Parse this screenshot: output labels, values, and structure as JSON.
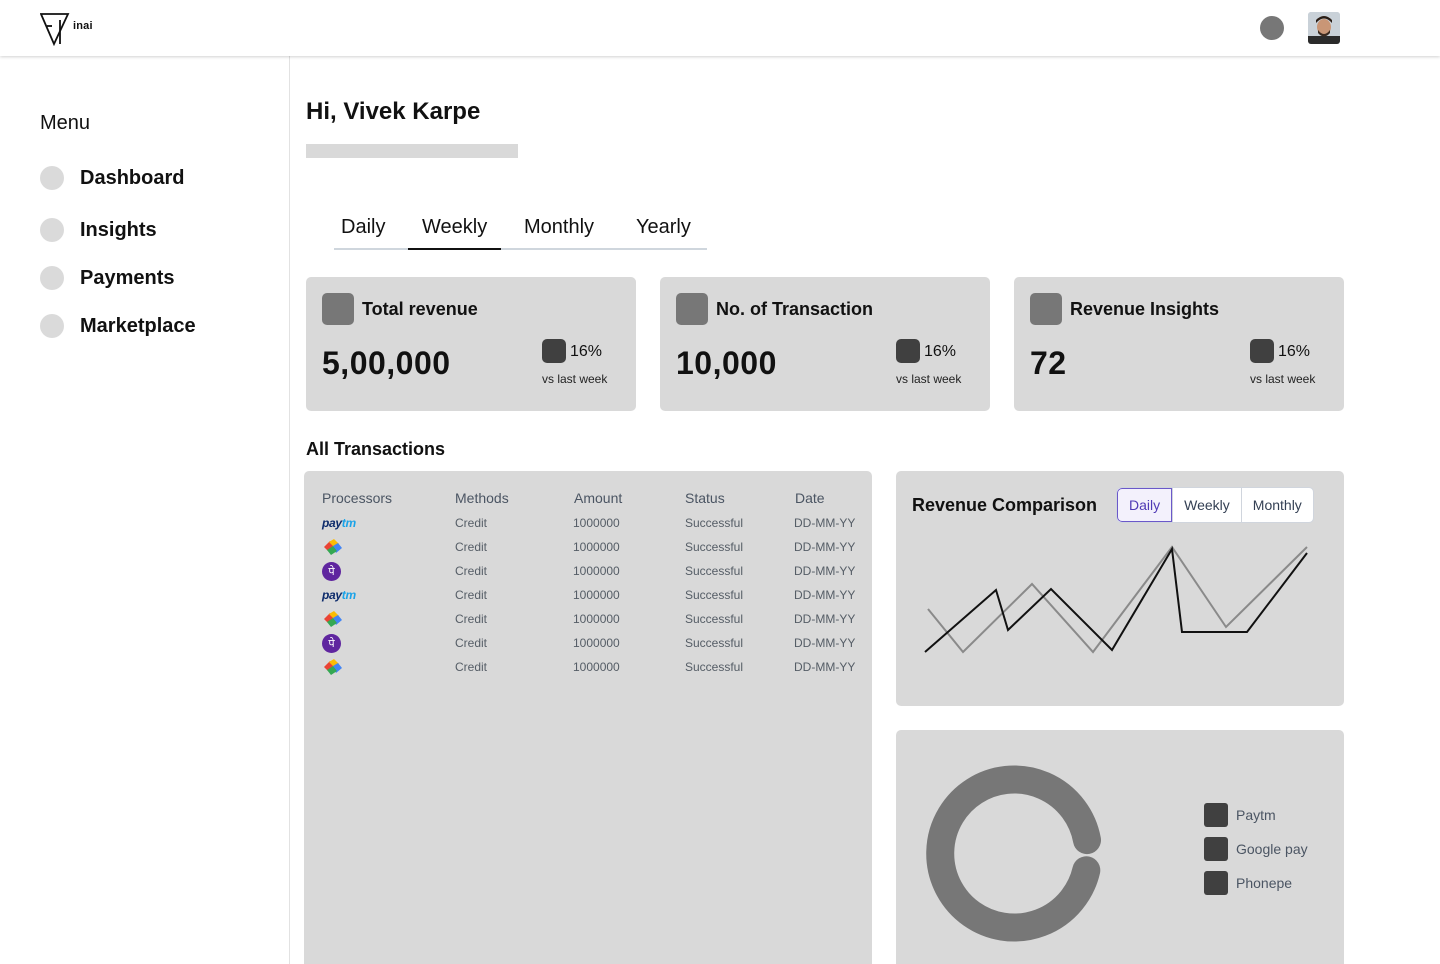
{
  "brand": {
    "logo_text": "inai"
  },
  "header": {
    "notification_icon": "notification-dot-icon",
    "avatar": "user-avatar"
  },
  "sidebar": {
    "title": "Menu",
    "items": [
      {
        "label": "Dashboard"
      },
      {
        "label": "Insights"
      },
      {
        "label": "Payments"
      },
      {
        "label": "Marketplace"
      }
    ]
  },
  "main": {
    "greeting": "Hi, Vivek Karpe",
    "tabs": [
      {
        "label": "Daily",
        "active": false
      },
      {
        "label": "Weekly",
        "active": true
      },
      {
        "label": "Monthly",
        "active": false
      },
      {
        "label": "Yearly",
        "active": false
      }
    ],
    "stats": [
      {
        "title": "Total revenue",
        "value": "5,00,000",
        "delta": "16%",
        "delta_sub": "vs last week"
      },
      {
        "title": "No. of Transaction",
        "value": "10,000",
        "delta": "16%",
        "delta_sub": "vs last week"
      },
      {
        "title": "Revenue Insights",
        "value": "72",
        "delta": "16%",
        "delta_sub": "vs last week"
      }
    ],
    "transactions": {
      "title": "All Transactions",
      "columns": [
        "Processors",
        "Methods",
        "Amount",
        "Status",
        "Date"
      ],
      "rows": [
        {
          "processor": "paytm",
          "paytm_a": "pay",
          "paytm_b": "tm",
          "method": "Credit",
          "amount": "1000000",
          "status": "Successful",
          "date": "DD-MM-YY"
        },
        {
          "processor": "googlepay",
          "method": "Credit",
          "amount": "1000000",
          "status": "Successful",
          "date": "DD-MM-YY"
        },
        {
          "processor": "phonepe",
          "phonepe_glyph": "पे",
          "method": "Credit",
          "amount": "1000000",
          "status": "Successful",
          "date": "DD-MM-YY"
        },
        {
          "processor": "paytm",
          "paytm_a": "pay",
          "paytm_b": "tm",
          "method": "Credit",
          "amount": "1000000",
          "status": "Successful",
          "date": "DD-MM-YY"
        },
        {
          "processor": "googlepay",
          "method": "Credit",
          "amount": "1000000",
          "status": "Successful",
          "date": "DD-MM-YY"
        },
        {
          "processor": "phonepe",
          "phonepe_glyph": "पे",
          "method": "Credit",
          "amount": "1000000",
          "status": "Successful",
          "date": "DD-MM-YY"
        },
        {
          "processor": "googlepay",
          "method": "Credit",
          "amount": "1000000",
          "status": "Successful",
          "date": "DD-MM-YY"
        }
      ]
    },
    "revenue_comparison": {
      "title": "Revenue Comparison",
      "toggle": [
        {
          "label": "Daily",
          "active": true
        },
        {
          "label": "Weekly",
          "active": false
        },
        {
          "label": "Monthly",
          "active": false
        }
      ],
      "colors": {
        "series_a": "#111111",
        "series_b": "#8a8a8a"
      }
    },
    "donut": {
      "legend": [
        {
          "label": "Paytm"
        },
        {
          "label": "Google pay"
        },
        {
          "label": "Phonepe"
        }
      ],
      "colors": {
        "ring": "#777777",
        "legend_square": "#404040"
      }
    }
  }
}
